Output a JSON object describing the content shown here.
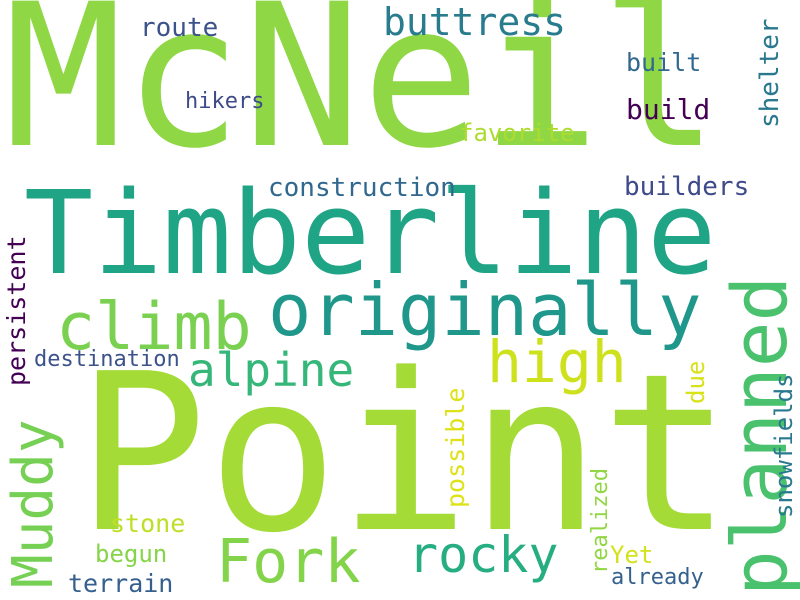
{
  "words": [
    {
      "text": "McNeil",
      "color": "#8fd744",
      "orientation": "horizontal"
    },
    {
      "text": "Point",
      "color": "#a5db36",
      "orientation": "horizontal"
    },
    {
      "text": "Timberline",
      "color": "#20a486",
      "orientation": "horizontal"
    },
    {
      "text": "originally",
      "color": "#1f978b",
      "orientation": "horizontal"
    },
    {
      "text": "climb",
      "color": "#7ad151",
      "orientation": "horizontal"
    },
    {
      "text": "planned",
      "color": "#4ac16d",
      "orientation": "vertical"
    },
    {
      "text": "Muddy",
      "color": "#75d054",
      "orientation": "vertical"
    },
    {
      "text": "Fork",
      "color": "#84d44b",
      "orientation": "horizontal"
    },
    {
      "text": "rocky",
      "color": "#26ad81",
      "orientation": "horizontal"
    },
    {
      "text": "high",
      "color": "#cde11d",
      "orientation": "horizontal"
    },
    {
      "text": "alpine",
      "color": "#35b779",
      "orientation": "horizontal"
    },
    {
      "text": "buttress",
      "color": "#287c8e",
      "orientation": "horizontal"
    },
    {
      "text": "construction",
      "color": "#31688e",
      "orientation": "horizontal"
    },
    {
      "text": "builders",
      "color": "#3e4a89",
      "orientation": "horizontal"
    },
    {
      "text": "route",
      "color": "#3b528b",
      "orientation": "horizontal"
    },
    {
      "text": "built",
      "color": "#31688e",
      "orientation": "horizontal"
    },
    {
      "text": "hikers",
      "color": "#3e4a89",
      "orientation": "horizontal"
    },
    {
      "text": "build",
      "color": "#440154",
      "orientation": "horizontal"
    },
    {
      "text": "favorite",
      "color": "#addc30",
      "orientation": "horizontal"
    },
    {
      "text": "shelter",
      "color": "#2a788e",
      "orientation": "vertical"
    },
    {
      "text": "persistent",
      "color": "#440154",
      "orientation": "vertical"
    },
    {
      "text": "destination",
      "color": "#3b528b",
      "orientation": "horizontal"
    },
    {
      "text": "possible",
      "color": "#dde318",
      "orientation": "vertical"
    },
    {
      "text": "due",
      "color": "#d8e219",
      "orientation": "vertical"
    },
    {
      "text": "snowfields",
      "color": "#2a788e",
      "orientation": "vertical"
    },
    {
      "text": "stone",
      "color": "#bddf26",
      "orientation": "horizontal"
    },
    {
      "text": "begun",
      "color": "#86d549",
      "orientation": "horizontal"
    },
    {
      "text": "realized",
      "color": "#90d743",
      "orientation": "vertical"
    },
    {
      "text": "Yet",
      "color": "#d2e21b",
      "orientation": "horizontal"
    },
    {
      "text": "terrain",
      "color": "#355f8d",
      "orientation": "horizontal"
    },
    {
      "text": "already",
      "color": "#34618d",
      "orientation": "horizontal"
    }
  ]
}
